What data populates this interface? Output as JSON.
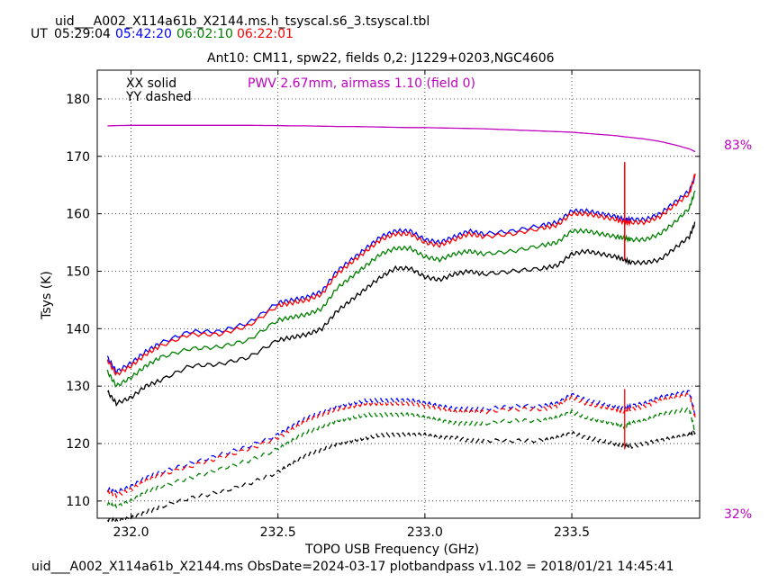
{
  "header": {
    "file_title": "uid___A002_X114a61b_X2144.ms.h_tsyscal.s6_3.tsyscal.tbl",
    "ut_label": "UT",
    "times": [
      {
        "text": "05:29:04",
        "color": "#000000"
      },
      {
        "text": "05:42:20",
        "color": "#0000ff"
      },
      {
        "text": "06:02:10",
        "color": "#008000"
      },
      {
        "text": "06:22:01",
        "color": "#ff0000"
      }
    ],
    "plot_title": "Ant10: CM11,  spw22,  fields 0,2: J1229+0203,NGC4606"
  },
  "footer": {
    "text": "uid___A002_X114a61b_X2144.ms  ObsDate=2024-03-17   plotbandpass v1.102 = 2018/01/21 14:45:41"
  },
  "chart_data": {
    "type": "line",
    "xlabel": "TOPO USB Frequency (GHz)",
    "ylabel": "Tsys (K)",
    "xlim": [
      231.885,
      233.935
    ],
    "ylim": [
      107,
      185
    ],
    "xticks": [
      232.0,
      232.5,
      233.0,
      233.5
    ],
    "xtick_labels": [
      "232.0",
      "232.5",
      "233.0",
      "233.5"
    ],
    "yticks": [
      110,
      120,
      130,
      140,
      150,
      160,
      170,
      180
    ],
    "grid": true,
    "legend_lines": [
      "XX solid",
      "YY dashed"
    ],
    "annotation": {
      "text": "PWV 2.67mm, airmass 1.10 (field 0)",
      "color": "#bf00bf"
    },
    "right_axis": {
      "top_label": "83%",
      "bottom_label": "32%",
      "color": "#bf00bf"
    },
    "x": [
      231.92,
      231.95,
      232.0,
      232.05,
      232.1,
      232.2,
      232.3,
      232.4,
      232.5,
      232.55,
      232.6,
      232.65,
      232.7,
      232.75,
      232.8,
      232.85,
      232.9,
      232.95,
      233.0,
      233.05,
      233.1,
      233.15,
      233.2,
      233.3,
      233.4,
      233.45,
      233.5,
      233.55,
      233.6,
      233.65,
      233.68,
      233.7,
      233.75,
      233.8,
      233.85,
      233.9,
      233.92
    ],
    "series": [
      {
        "color": "#000000",
        "style": "solid",
        "values": [
          129.0,
          127.0,
          128.0,
          130.0,
          131.0,
          133.5,
          133.8,
          135.0,
          138.0,
          138.5,
          139.0,
          140.0,
          143.0,
          145.0,
          147.0,
          149.0,
          150.5,
          150.5,
          149.0,
          148.5,
          149.5,
          150.0,
          149.5,
          150.0,
          150.5,
          151.0,
          153.0,
          153.5,
          153.0,
          152.5,
          152.0,
          151.5,
          151.5,
          152.0,
          154.0,
          156.0,
          158.5
        ]
      },
      {
        "color": "#0000ff",
        "style": "solid",
        "values": [
          135.0,
          132.5,
          134.0,
          136.0,
          137.5,
          139.5,
          139.5,
          141.0,
          144.5,
          145.0,
          145.5,
          146.5,
          150.0,
          152.0,
          154.0,
          156.0,
          157.0,
          157.0,
          155.5,
          155.0,
          156.0,
          157.0,
          156.5,
          157.0,
          158.0,
          158.5,
          160.5,
          160.5,
          160.0,
          159.5,
          159.0,
          159.0,
          159.0,
          160.0,
          162.0,
          164.0,
          166.5
        ]
      },
      {
        "color": "#008000",
        "style": "solid",
        "values": [
          132.5,
          130.0,
          131.5,
          133.5,
          135.0,
          136.5,
          136.8,
          138.0,
          141.5,
          142.0,
          142.5,
          143.5,
          147.0,
          149.0,
          151.0,
          153.0,
          154.0,
          154.0,
          152.5,
          152.0,
          153.0,
          153.5,
          153.0,
          153.5,
          154.5,
          155.0,
          157.0,
          157.0,
          156.5,
          156.0,
          155.8,
          155.5,
          155.5,
          156.5,
          158.5,
          161.0,
          164.0
        ]
      },
      {
        "color": "#ff0000",
        "style": "solid",
        "values": [
          134.5,
          132.0,
          133.5,
          135.5,
          137.0,
          139.0,
          139.0,
          140.5,
          144.0,
          144.5,
          145.0,
          146.0,
          149.5,
          151.5,
          153.5,
          155.5,
          156.5,
          156.5,
          155.0,
          154.5,
          155.5,
          156.5,
          156.0,
          156.5,
          157.5,
          158.0,
          160.0,
          160.0,
          159.5,
          159.0,
          158.5,
          158.5,
          158.5,
          159.5,
          161.5,
          163.5,
          167.0
        ]
      },
      {
        "color": "#000000",
        "style": "dashed",
        "values": [
          106.8,
          106.5,
          107.0,
          108.0,
          109.0,
          110.5,
          111.5,
          113.0,
          115.0,
          116.5,
          118.0,
          119.0,
          120.0,
          120.5,
          121.0,
          121.5,
          121.5,
          121.5,
          121.5,
          121.0,
          121.0,
          120.5,
          120.5,
          120.5,
          120.5,
          121.0,
          121.8,
          121.0,
          120.5,
          120.0,
          119.5,
          119.5,
          120.0,
          120.5,
          121.0,
          121.5,
          122.0
        ]
      },
      {
        "color": "#0000ff",
        "style": "dashed",
        "values": [
          112.0,
          111.5,
          112.5,
          114.0,
          115.0,
          116.5,
          118.0,
          119.5,
          121.5,
          123.0,
          124.5,
          125.5,
          126.5,
          127.0,
          127.5,
          127.5,
          127.5,
          127.5,
          127.0,
          126.5,
          126.0,
          126.0,
          126.0,
          126.5,
          126.5,
          127.0,
          128.5,
          127.5,
          127.0,
          126.5,
          126.0,
          126.5,
          127.0,
          128.0,
          128.5,
          129.0,
          125.0
        ]
      },
      {
        "color": "#008000",
        "style": "dashed",
        "values": [
          109.5,
          109.0,
          110.0,
          111.5,
          112.5,
          114.0,
          115.5,
          117.0,
          119.0,
          120.5,
          122.0,
          123.0,
          124.0,
          124.5,
          125.0,
          125.0,
          125.0,
          125.0,
          124.5,
          124.0,
          123.5,
          123.5,
          123.5,
          124.0,
          124.0,
          124.5,
          125.5,
          124.5,
          124.0,
          123.5,
          123.0,
          123.5,
          124.0,
          125.0,
          125.5,
          126.0,
          122.0
        ]
      },
      {
        "color": "#ff0000",
        "style": "dashed",
        "values": [
          111.5,
          111.0,
          112.0,
          113.5,
          114.5,
          116.0,
          117.5,
          119.0,
          121.0,
          122.5,
          124.0,
          125.0,
          126.0,
          126.5,
          127.0,
          127.0,
          127.0,
          127.0,
          126.5,
          126.0,
          125.5,
          125.5,
          125.5,
          126.0,
          126.0,
          126.5,
          128.0,
          127.0,
          126.5,
          126.0,
          125.5,
          126.0,
          126.5,
          127.5,
          128.0,
          128.5,
          124.5
        ]
      },
      {
        "color": "#bf00bf",
        "style": "solid",
        "name": "transmission",
        "values": [
          175.3,
          175.35,
          175.4,
          175.4,
          175.4,
          175.4,
          175.4,
          175.4,
          175.35,
          175.3,
          175.3,
          175.25,
          175.2,
          175.2,
          175.15,
          175.1,
          175.05,
          175.0,
          175.0,
          174.95,
          174.9,
          174.85,
          174.8,
          174.6,
          174.4,
          174.3,
          174.2,
          174.0,
          173.8,
          173.6,
          173.4,
          173.3,
          173.0,
          172.6,
          172.0,
          171.3,
          170.8
        ]
      }
    ]
  }
}
